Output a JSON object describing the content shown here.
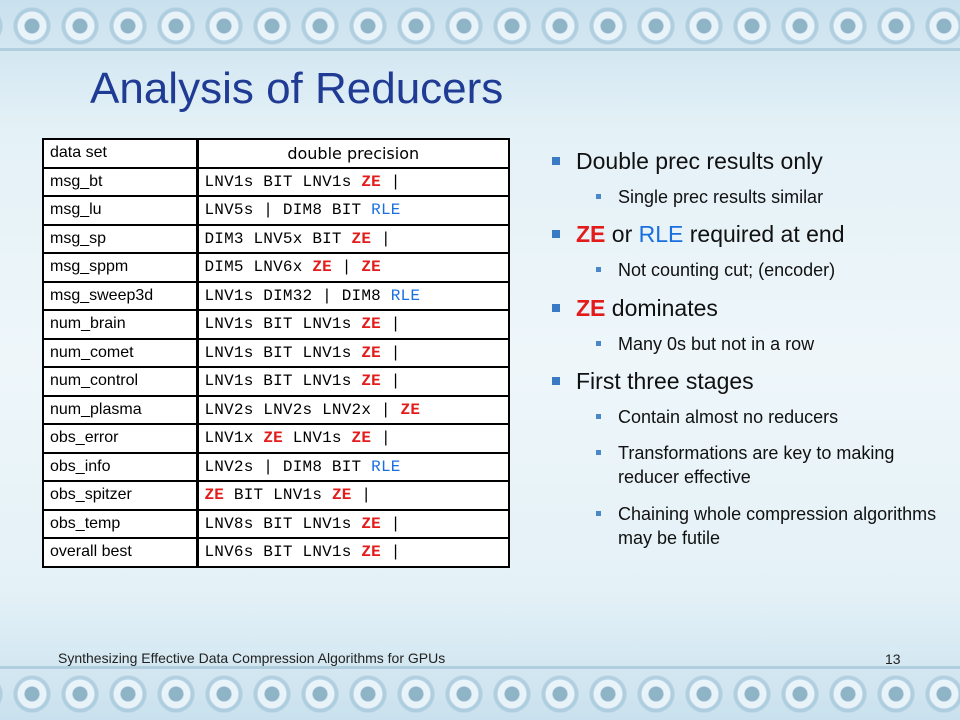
{
  "slide": {
    "title": "Analysis of Reducers",
    "footer": "Synthesizing Effective Data Compression Algorithms for GPUs",
    "page_number": "13"
  },
  "table": {
    "headers": [
      "data set",
      "double precision"
    ],
    "rows": [
      {
        "name": "msg_bt",
        "parts": [
          {
            "t": "LNV1s BIT LNV1s "
          },
          {
            "t": "ZE",
            "c": "red"
          },
          {
            "t": " |"
          }
        ]
      },
      {
        "name": "msg_lu",
        "parts": [
          {
            "t": "LNV5s | DIM8 BIT "
          },
          {
            "t": "RLE",
            "c": "blue"
          }
        ]
      },
      {
        "name": "msg_sp",
        "parts": [
          {
            "t": "DIM3 LNV5x BIT "
          },
          {
            "t": "ZE",
            "c": "red"
          },
          {
            "t": " |"
          }
        ]
      },
      {
        "name": "msg_sppm",
        "parts": [
          {
            "t": "DIM5 LNV6x "
          },
          {
            "t": "ZE",
            "c": "red"
          },
          {
            "t": " | "
          },
          {
            "t": "ZE",
            "c": "red"
          }
        ]
      },
      {
        "name": "msg_sweep3d",
        "parts": [
          {
            "t": "LNV1s DIM32 | DIM8 "
          },
          {
            "t": "RLE",
            "c": "blue"
          }
        ]
      },
      {
        "name": "num_brain",
        "parts": [
          {
            "t": "LNV1s BIT LNV1s "
          },
          {
            "t": "ZE",
            "c": "red"
          },
          {
            "t": " |"
          }
        ]
      },
      {
        "name": "num_comet",
        "parts": [
          {
            "t": "LNV1s BIT LNV1s "
          },
          {
            "t": "ZE",
            "c": "red"
          },
          {
            "t": " |"
          }
        ]
      },
      {
        "name": "num_control",
        "parts": [
          {
            "t": "LNV1s BIT LNV1s "
          },
          {
            "t": "ZE",
            "c": "red"
          },
          {
            "t": " |"
          }
        ]
      },
      {
        "name": "num_plasma",
        "parts": [
          {
            "t": "LNV2s LNV2s LNV2x | "
          },
          {
            "t": "ZE",
            "c": "red"
          }
        ]
      },
      {
        "name": "obs_error",
        "parts": [
          {
            "t": "LNV1x "
          },
          {
            "t": "ZE",
            "c": "red"
          },
          {
            "t": " LNV1s "
          },
          {
            "t": "ZE",
            "c": "red"
          },
          {
            "t": " |"
          }
        ]
      },
      {
        "name": "obs_info",
        "parts": [
          {
            "t": "LNV2s | DIM8 BIT "
          },
          {
            "t": "RLE",
            "c": "blue"
          }
        ]
      },
      {
        "name": "obs_spitzer",
        "parts": [
          {
            "t": "ZE",
            "c": "red"
          },
          {
            "t": " BIT LNV1s "
          },
          {
            "t": "ZE",
            "c": "red"
          },
          {
            "t": " |"
          }
        ]
      },
      {
        "name": "obs_temp",
        "parts": [
          {
            "t": "LNV8s BIT LNV1s "
          },
          {
            "t": "ZE",
            "c": "red"
          },
          {
            "t": " |"
          }
        ]
      },
      {
        "name": "overall best",
        "parts": [
          {
            "t": "LNV6s BIT LNV1s "
          },
          {
            "t": "ZE",
            "c": "red"
          },
          {
            "t": " |"
          }
        ]
      }
    ]
  },
  "bullets": [
    {
      "parts": [
        {
          "t": "Double prec results only"
        }
      ],
      "sub": [
        "Single prec results similar"
      ]
    },
    {
      "parts": [
        {
          "t": "ZE",
          "c": "red"
        },
        {
          "t": " or "
        },
        {
          "t": "RLE",
          "c": "blue"
        },
        {
          "t": " required at end"
        }
      ],
      "sub": [
        "Not counting cut; (encoder)"
      ]
    },
    {
      "parts": [
        {
          "t": "ZE",
          "c": "red"
        },
        {
          "t": " dominates"
        }
      ],
      "sub": [
        "Many 0s but not in a row"
      ]
    },
    {
      "parts": [
        {
          "t": "First three stages"
        }
      ],
      "sub": [
        "Contain almost no reducers",
        "Transformations are key to making reducer effective",
        "Chaining whole compression algorithms may be futile"
      ]
    }
  ],
  "colors": {
    "red": "#e31b1b",
    "blue": "#1a6fe0",
    "title": "#1f3b94",
    "bullet": "#3a79c4"
  }
}
